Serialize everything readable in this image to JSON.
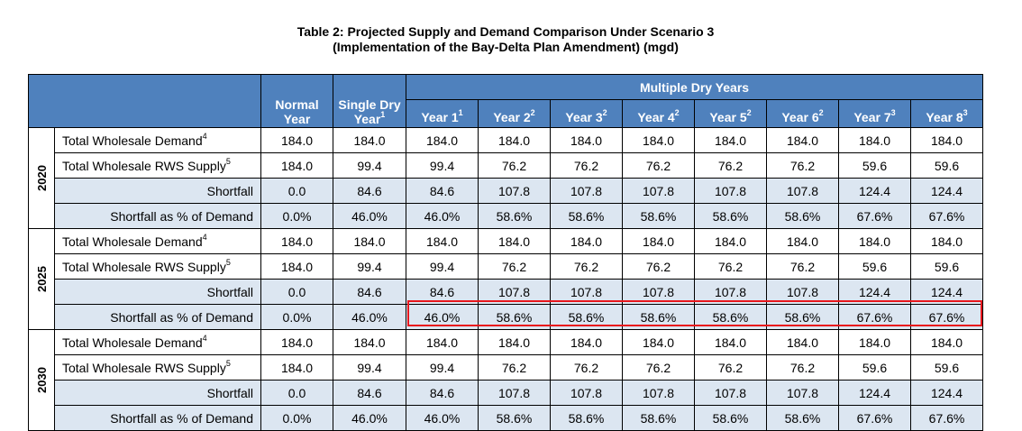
{
  "title": {
    "line1": "Table 2: Projected Supply and Demand Comparison Under Scenario 3",
    "line2": "(Implementation of the Bay-Delta Plan Amendment) (mgd)"
  },
  "header": {
    "normal_year": "Normal Year",
    "single_dry": "Single Dry",
    "single_dry_year": "Year",
    "single_dry_sup": "1",
    "multiple_dry_years": "Multiple Dry Years",
    "years": [
      {
        "label": "Year 1",
        "sup": "1"
      },
      {
        "label": "Year 2",
        "sup": "2"
      },
      {
        "label": "Year 3",
        "sup": "2"
      },
      {
        "label": "Year 4",
        "sup": "2"
      },
      {
        "label": "Year 5",
        "sup": "2"
      },
      {
        "label": "Year 6",
        "sup": "2"
      },
      {
        "label": "Year 7",
        "sup": "3"
      },
      {
        "label": "Year 8",
        "sup": "3"
      }
    ]
  },
  "row_labels": {
    "demand": "Total Wholesale Demand",
    "demand_sup": "4",
    "supply": "Total Wholesale RWS Supply",
    "supply_sup": "5",
    "shortfall": "Shortfall",
    "shortfall_pct": "Shortfall as % of Demand"
  },
  "groups": [
    {
      "year": "2020",
      "demand": [
        "184.0",
        "184.0",
        "184.0",
        "184.0",
        "184.0",
        "184.0",
        "184.0",
        "184.0",
        "184.0",
        "184.0"
      ],
      "supply": [
        "184.0",
        "99.4",
        "99.4",
        "76.2",
        "76.2",
        "76.2",
        "76.2",
        "76.2",
        "59.6",
        "59.6"
      ],
      "shortfall": [
        "0.0",
        "84.6",
        "84.6",
        "107.8",
        "107.8",
        "107.8",
        "107.8",
        "107.8",
        "124.4",
        "124.4"
      ],
      "shortfall_pct": [
        "0.0%",
        "46.0%",
        "46.0%",
        "58.6%",
        "58.6%",
        "58.6%",
        "58.6%",
        "58.6%",
        "67.6%",
        "67.6%"
      ]
    },
    {
      "year": "2025",
      "demand": [
        "184.0",
        "184.0",
        "184.0",
        "184.0",
        "184.0",
        "184.0",
        "184.0",
        "184.0",
        "184.0",
        "184.0"
      ],
      "supply": [
        "184.0",
        "99.4",
        "99.4",
        "76.2",
        "76.2",
        "76.2",
        "76.2",
        "76.2",
        "59.6",
        "59.6"
      ],
      "shortfall": [
        "0.0",
        "84.6",
        "84.6",
        "107.8",
        "107.8",
        "107.8",
        "107.8",
        "107.8",
        "124.4",
        "124.4"
      ],
      "shortfall_pct": [
        "0.0%",
        "46.0%",
        "46.0%",
        "58.6%",
        "58.6%",
        "58.6%",
        "58.6%",
        "58.6%",
        "67.6%",
        "67.6%"
      ]
    },
    {
      "year": "2030",
      "demand": [
        "184.0",
        "184.0",
        "184.0",
        "184.0",
        "184.0",
        "184.0",
        "184.0",
        "184.0",
        "184.0",
        "184.0"
      ],
      "supply": [
        "184.0",
        "99.4",
        "99.4",
        "76.2",
        "76.2",
        "76.2",
        "76.2",
        "76.2",
        "59.6",
        "59.6"
      ],
      "shortfall": [
        "0.0",
        "84.6",
        "84.6",
        "107.8",
        "107.8",
        "107.8",
        "107.8",
        "107.8",
        "124.4",
        "124.4"
      ],
      "shortfall_pct": [
        "0.0%",
        "46.0%",
        "46.0%",
        "58.6%",
        "58.6%",
        "58.6%",
        "58.6%",
        "58.6%",
        "67.6%",
        "67.6%"
      ]
    }
  ],
  "colors": {
    "header_bg": "#4f81bd",
    "shade_bg": "#dce6f1",
    "highlight_border": "#e8161c"
  }
}
